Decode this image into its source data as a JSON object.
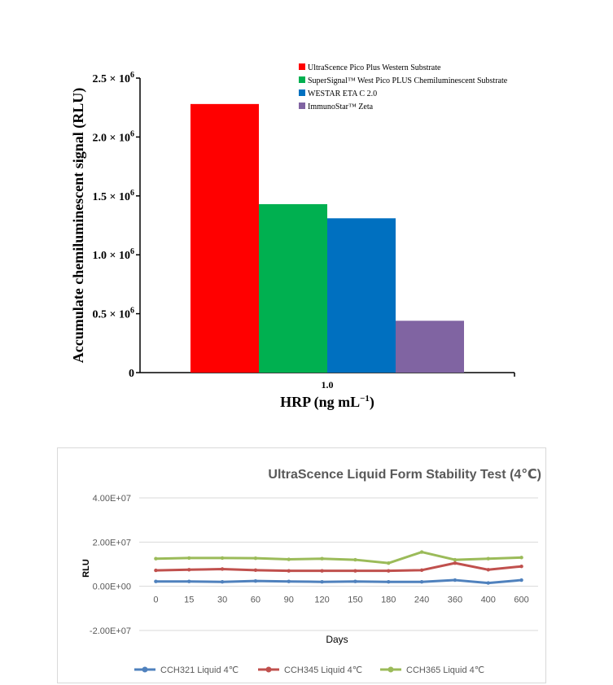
{
  "chart_data": [
    {
      "type": "bar",
      "ylabel": "Accumulate chemiluminescent signal (RLU)",
      "xlabel": "HRP (ng mL",
      "xlabel_sup": "−1",
      "xlabel_close": ")",
      "categories": [
        "1.0"
      ],
      "ylim": [
        0,
        2500000
      ],
      "yticks": [
        {
          "value": 0,
          "label": "0",
          "sup": ""
        },
        {
          "value": 500000,
          "label": "0.5 × 10",
          "sup": "6"
        },
        {
          "value": 1000000,
          "label": "1.0 × 10",
          "sup": "6"
        },
        {
          "value": 1500000,
          "label": "1.5 × 10",
          "sup": "6"
        },
        {
          "value": 2000000,
          "label": "2.0 × 10",
          "sup": "6"
        },
        {
          "value": 2500000,
          "label": "2.5 × 10",
          "sup": "6"
        }
      ],
      "series": [
        {
          "name": "UltraScence Pico Plus Western Substrate",
          "values": [
            2280000
          ],
          "color": "#ff0000"
        },
        {
          "name": "SuperSignal™ West Pico PLUS Chemiluminescent Substrate",
          "values": [
            1430000
          ],
          "color": "#00b050"
        },
        {
          "name": "WESTAR ETA C 2.0",
          "values": [
            1310000
          ],
          "color": "#0070c0"
        },
        {
          "name": "ImmunoStar™ Zeta",
          "values": [
            440000
          ],
          "color": "#8064a2"
        }
      ],
      "legend": "top-right",
      "grid": false
    },
    {
      "type": "line",
      "title": "UltraScence Liquid Form Stability Test (4℃)",
      "xlabel": "Days",
      "ylabel": "RLU",
      "x": [
        "0",
        "15",
        "30",
        "60",
        "90",
        "120",
        "150",
        "180",
        "240",
        "360",
        "400",
        "600"
      ],
      "ylim": [
        -20000000,
        40000000
      ],
      "yticks": [
        {
          "value": 40000000,
          "label": "4.00E+07"
        },
        {
          "value": 20000000,
          "label": "2.00E+07"
        },
        {
          "value": 0,
          "label": "0.00E+00"
        },
        {
          "value": -20000000,
          "label": "-2.00E+07"
        }
      ],
      "series": [
        {
          "name": "CCH321 Liquid 4℃",
          "color": "#4f81bd",
          "values": [
            2200000,
            2200000,
            2000000,
            2400000,
            2200000,
            2000000,
            2200000,
            2000000,
            2000000,
            2800000,
            1500000,
            2800000
          ]
        },
        {
          "name": "CCH345 Liquid 4℃",
          "color": "#c0504d",
          "values": [
            7200000,
            7500000,
            7800000,
            7300000,
            7000000,
            7000000,
            7000000,
            7000000,
            7300000,
            10500000,
            7500000,
            9000000
          ]
        },
        {
          "name": "CCH365 Liquid 4℃",
          "color": "#9bbb59",
          "values": [
            12500000,
            12800000,
            12800000,
            12700000,
            12200000,
            12500000,
            12000000,
            10500000,
            15500000,
            12000000,
            12500000,
            13000000
          ]
        }
      ],
      "legend": "bottom",
      "grid": true
    }
  ]
}
